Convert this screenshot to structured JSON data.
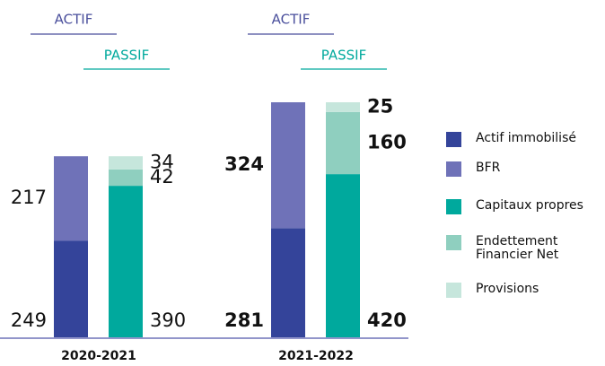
{
  "chart_data": {
    "type": "stacked_bar",
    "categories": [
      "2020-2021",
      "2021-2022"
    ],
    "stacks": [
      "ACTIF",
      "PASSIF"
    ],
    "series": [
      {
        "name": "Actif immobilisé",
        "stack": 0,
        "color": "#34449a",
        "values": [
          249,
          281
        ]
      },
      {
        "name": "BFR",
        "stack": 0,
        "color": "#6f72b8",
        "values": [
          217,
          324
        ]
      },
      {
        "name": "Capitaux propres",
        "stack": 1,
        "color": "#00a99d",
        "values": [
          390,
          420
        ]
      },
      {
        "name": "Endettement Financier Net",
        "stack": 1,
        "color": "#8fcfbf",
        "values": [
          42,
          160
        ]
      },
      {
        "name": "Provisions",
        "stack": 1,
        "color": "#c6e6dc",
        "values": [
          34,
          25
        ]
      }
    ]
  }
}
